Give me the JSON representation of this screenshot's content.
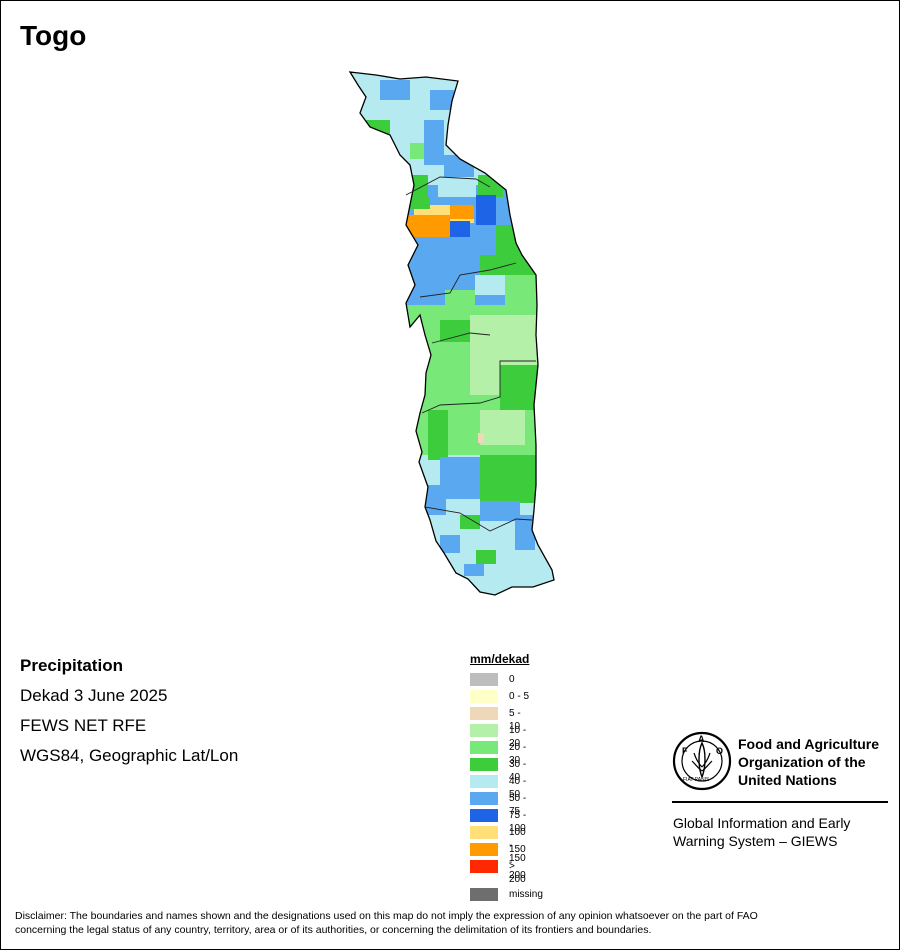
{
  "title": "Togo",
  "info": {
    "heading": "Precipitation",
    "period": "Dekad 3 June 2025",
    "source": "FEWS NET RFE",
    "projection": "WGS84, Geographic Lat/Lon"
  },
  "legend": {
    "title": "mm/dekad",
    "items": [
      {
        "label": "0",
        "color": "#bdbdbd"
      },
      {
        "label": "0 - 5",
        "color": "#ffffc8"
      },
      {
        "label": "5 - 10",
        "color": "#eed8b8"
      },
      {
        "label": "10 - 20",
        "color": "#b4f0a8"
      },
      {
        "label": "20 - 30",
        "color": "#78e878"
      },
      {
        "label": "30 - 40",
        "color": "#3ccc3c"
      },
      {
        "label": "40 - 50",
        "color": "#b4eaf0"
      },
      {
        "label": "50 - 75",
        "color": "#5aa8f0"
      },
      {
        "label": "75 - 100",
        "color": "#1e64e6"
      },
      {
        "label": "100 - 150",
        "color": "#ffe078"
      },
      {
        "label": "150 - 200",
        "color": "#ff9a00"
      },
      {
        "label": "> 200",
        "color": "#ff2800"
      }
    ],
    "missing": {
      "label": "missing",
      "color": "#6e6e6e"
    }
  },
  "logo": {
    "line1": "Food and Agriculture",
    "line2": "Organization of the",
    "line3": "United Nations",
    "seal_letters": "FAO",
    "seal_motto": "FIAT PANIS"
  },
  "giews": {
    "line1": "Global Information and Early",
    "line2": "Warning System – GIEWS"
  },
  "disclaimer": {
    "line1": "Disclaimer: The boundaries and names shown and the designations used on this map do not imply the expression of any opinion whatsoever on the part of FAO",
    "line2": "concerning the legal status of any country, territory, area or of its authorities, or concerning the delimitation of its frontiers and boundaries."
  }
}
